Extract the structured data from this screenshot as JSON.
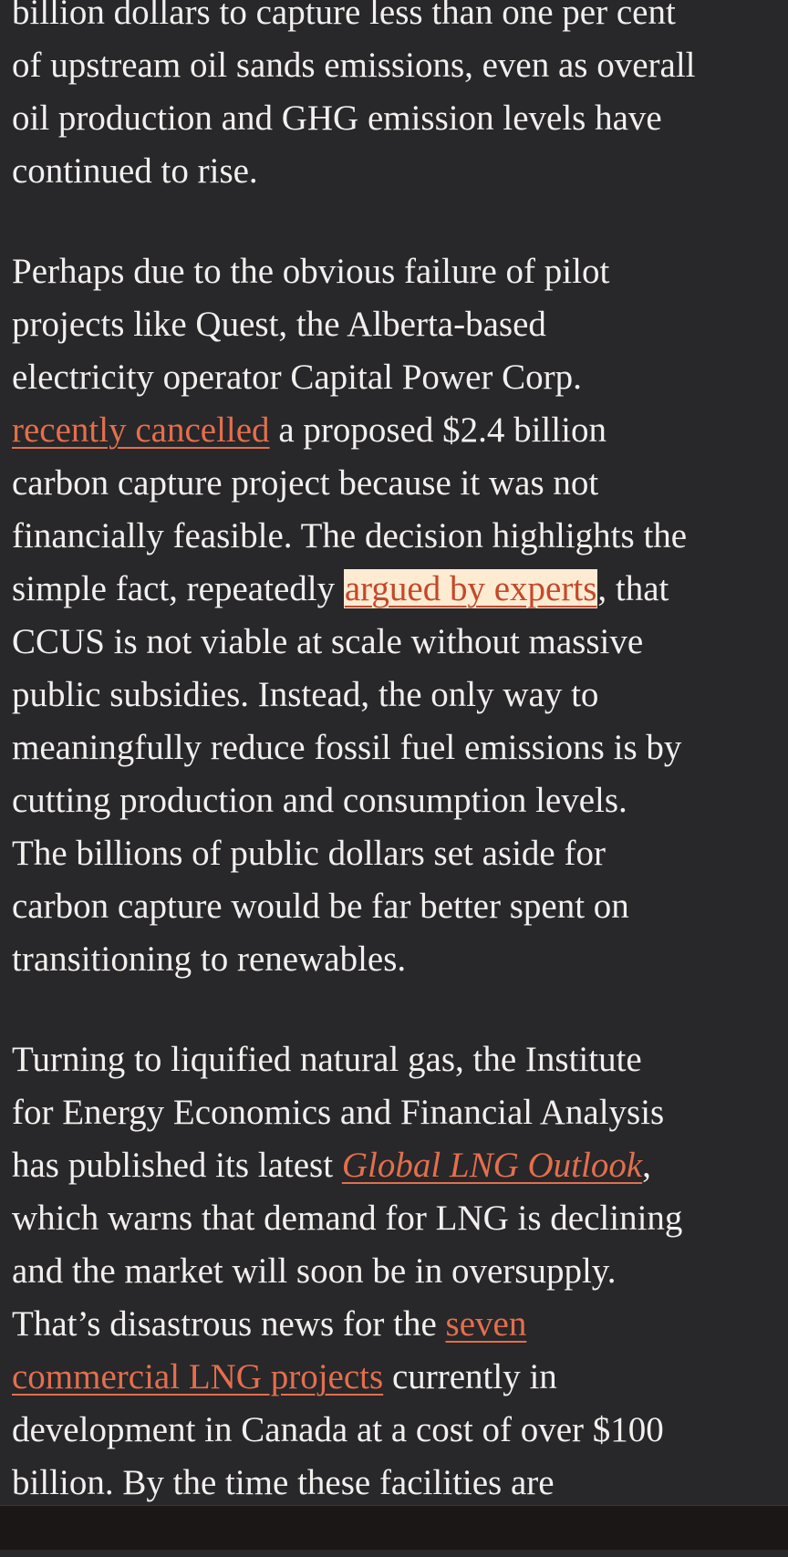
{
  "paragraphs": [
    {
      "lines": [
        [
          {
            "text": "billion dollars to capture less than one per cent"
          }
        ],
        [
          {
            "text": "of upstream oil sands emissions, even as overall"
          }
        ],
        [
          {
            "text": "oil production and GHG emission levels have"
          }
        ],
        [
          {
            "text": "continued to rise."
          }
        ]
      ]
    },
    {
      "lines": [
        [
          {
            "text": "Perhaps due to the obvious failure of pilot"
          }
        ],
        [
          {
            "text": "projects like Quest, the Alberta-based"
          }
        ],
        [
          {
            "text": "electricity operator Capital Power Corp."
          }
        ],
        [
          {
            "text": "recently cancelled",
            "link": true
          },
          {
            "text": " a proposed $2.4 billion"
          }
        ],
        [
          {
            "text": "carbon capture project because it was not"
          }
        ],
        [
          {
            "text": "financially feasible. The decision highlights the"
          }
        ],
        [
          {
            "text": "simple fact, repeatedly "
          },
          {
            "text": "argued by experts",
            "link": true,
            "highlight": true
          },
          {
            "text": ", that"
          }
        ],
        [
          {
            "text": "CCUS is not viable at scale without massive"
          }
        ],
        [
          {
            "text": "public subsidies. Instead, the only way to"
          }
        ],
        [
          {
            "text": "meaningfully reduce fossil fuel emissions is by"
          }
        ],
        [
          {
            "text": "cutting production and consumption levels."
          }
        ],
        [
          {
            "text": "The billions of public dollars set aside for"
          }
        ],
        [
          {
            "text": "carbon capture would be far better spent on"
          }
        ],
        [
          {
            "text": "transitioning to renewables."
          }
        ]
      ]
    },
    {
      "lines": [
        [
          {
            "text": "Turning to liquified natural gas, the Institute"
          }
        ],
        [
          {
            "text": "for Energy Economics and Financial Analysis"
          }
        ],
        [
          {
            "text": "has published its latest "
          },
          {
            "text": "Global LNG Outlook",
            "link": true,
            "italic": true
          },
          {
            "text": ","
          }
        ],
        [
          {
            "text": "which warns that demand for LNG is declining"
          }
        ],
        [
          {
            "text": "and the market will soon be in oversupply."
          }
        ],
        [
          {
            "text": "That’s disastrous news for the "
          },
          {
            "text": "seven",
            "link": true
          }
        ],
        [
          {
            "text": "commercial LNG projects",
            "link": true
          },
          {
            "text": " currently in"
          }
        ],
        [
          {
            "text": "development in Canada at a cost of over $100"
          }
        ],
        [
          {
            "text": "billion. By the time these facilities are"
          }
        ]
      ]
    }
  ],
  "colors": {
    "background": "#282729",
    "text": "#f2f0ee",
    "link": "#e36f4d",
    "highlight_bg": "#fdebd2",
    "highlight_text": "#c3492a",
    "bottom_bar": "#1a1716"
  }
}
